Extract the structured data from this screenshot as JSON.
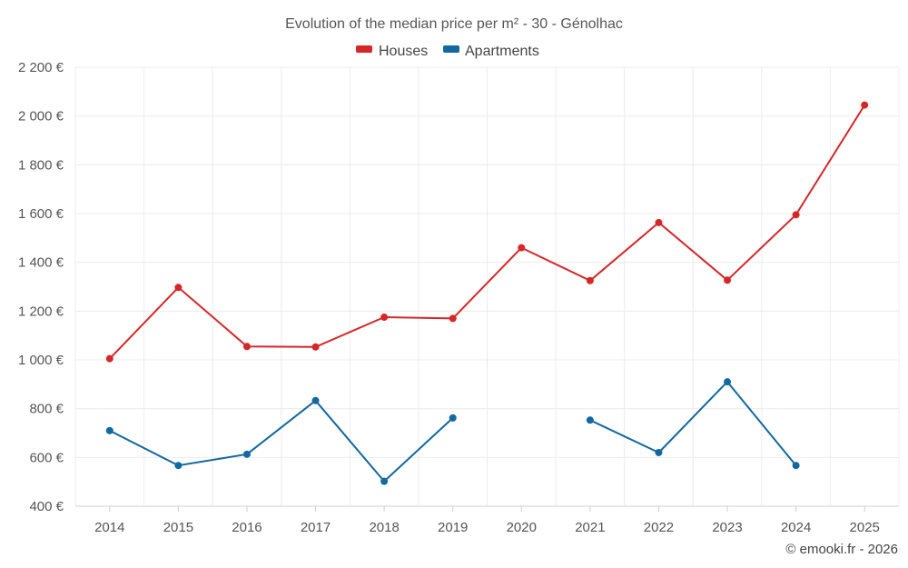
{
  "chart_data": {
    "type": "line",
    "title": "Evolution of the median price per m² - 30 - Génolhac",
    "categories": [
      "2014",
      "2015",
      "2016",
      "2017",
      "2018",
      "2019",
      "2020",
      "2021",
      "2022",
      "2023",
      "2024",
      "2025"
    ],
    "y_ticks": [
      "400 €",
      "600 €",
      "800 €",
      "1 000 €",
      "1 200 €",
      "1 400 €",
      "1 600 €",
      "1 800 €",
      "2 000 €",
      "2 200 €"
    ],
    "ylim": [
      400,
      2200
    ],
    "y_step": 200,
    "grid": true,
    "legend_position": "top-center",
    "series": [
      {
        "name": "Houses",
        "color": "#d62728",
        "values": [
          1005,
          1297,
          1055,
          1053,
          1175,
          1170,
          1460,
          1325,
          1563,
          1327,
          1595,
          2045
        ]
      },
      {
        "name": "Apartments",
        "color": "#1268a0",
        "values": [
          710,
          567,
          613,
          833,
          502,
          762,
          null,
          753,
          620,
          910,
          567,
          null
        ]
      }
    ],
    "credit": "© emooki.fr - 2026"
  }
}
